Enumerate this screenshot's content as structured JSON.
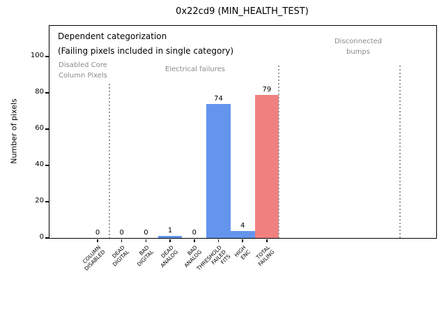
{
  "chart_data": {
    "type": "bar",
    "title": "0x22cd9 (MIN_HEALTH_TEST)",
    "xlabel": "",
    "ylabel": "Number of pixels",
    "categories": [
      "COLUMN\nDISABLED",
      "DEAD\nDIGITAL",
      "BAD\nDIGITAL",
      "DEAD\nANALOG",
      "BAD\nANALOG",
      "THRESHOLD\nFAILED\nFITS",
      "HIGH\nENC",
      "TOTAL\nFAILING"
    ],
    "values": [
      0,
      0,
      0,
      1,
      0,
      74,
      4,
      79
    ],
    "bar_colors": [
      "#6495ed",
      "#6495ed",
      "#6495ed",
      "#6495ed",
      "#6495ed",
      "#6495ed",
      "#6495ed",
      "#f08080"
    ],
    "yticks": [
      0,
      20,
      40,
      60,
      80,
      100
    ],
    "ylim": [
      0,
      117
    ],
    "grid": false,
    "legend": "none",
    "value_labels_shown": true,
    "separators": [
      {
        "x": 0.5,
        "top_value": 85
      },
      {
        "x": 7.5,
        "top_value": 95
      },
      {
        "x": 12.5,
        "top_value": 95
      }
    ],
    "separator_color": "#999999",
    "bar_color_main": "#6495ed",
    "bar_color_total": "#f08080"
  },
  "annotations": {
    "main_line1": "Dependent categorization",
    "main_line2": "(Failing pixels included in single category)",
    "region_disabled": "Disabled Core\nColumn Pixels",
    "region_electrical": "Electrical failures",
    "region_disconnected": "Disconnected\nbumps"
  }
}
